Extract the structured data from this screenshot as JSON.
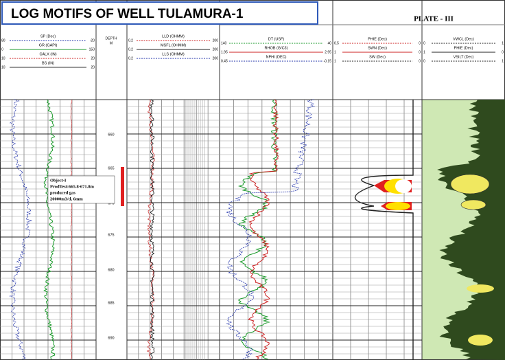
{
  "header": {
    "title": "LOG MOTIFS OF WELL TULAMURA-1",
    "plate": "PLATE - III"
  },
  "tracks": [
    {
      "curves": [
        {
          "name": "SP (Dec)",
          "left": "80",
          "right": "-20",
          "color": "#2233aa"
        },
        {
          "name": "GR (GAPI)",
          "left": "0",
          "right": "150",
          "color": "#1a9a2a"
        },
        {
          "name": "CALX (IN)",
          "left": "10",
          "right": "20",
          "color": "#cc2222"
        },
        {
          "name": "BS (IN)",
          "left": "10",
          "right": "20",
          "color": "#333333"
        }
      ]
    },
    {
      "curves": [
        {
          "name": "LLD (OHMM)",
          "left": "0.2",
          "right": "200",
          "color": "#cc2222"
        },
        {
          "name": "MSFL (OHMM)",
          "left": "0.2",
          "right": "200",
          "color": "#222222"
        },
        {
          "name": "LLS (OHMM)",
          "left": "0.2",
          "right": "200",
          "color": "#2233aa"
        }
      ]
    },
    {
      "curves": [
        {
          "name": "DT (USF)",
          "left": "140",
          "right": "40",
          "color": "#1a9a2a"
        },
        {
          "name": "RHOB (G/C3)",
          "left": "1.95",
          "right": "2.95",
          "color": "#cc2222"
        },
        {
          "name": "NPHI (DEC)",
          "left": "0.45",
          "right": "-0.15",
          "color": "#2233aa"
        }
      ]
    },
    {
      "curves": [
        {
          "name": "PHIE (Dec)",
          "left": "0.5",
          "right": "0",
          "color": "#cc2222"
        },
        {
          "name": "SWN (Dec)",
          "left": "1",
          "right": "0",
          "color": "#cc2222"
        },
        {
          "name": "SW (Dec)",
          "left": "1",
          "right": "0",
          "color": "#222222"
        }
      ]
    },
    {
      "curves": [
        {
          "name": "VWCL (Dec)",
          "left": "0",
          "right": "1",
          "color": "#222222"
        },
        {
          "name": "PHIE (Dec)",
          "left": "1",
          "right": "0",
          "color": "#222222"
        },
        {
          "name": "VSILT (Dec)",
          "left": "0",
          "right": "1",
          "color": "#222222"
        }
      ]
    }
  ],
  "depth": {
    "title": "DEPTH",
    "unit": "M",
    "labels": [
      "660",
      "665",
      "670",
      "675",
      "680",
      "685",
      "690"
    ]
  },
  "annotation": {
    "lines": [
      "Object-I",
      "ProdTest:665.8-671.8m",
      "produced gas",
      "20000m3/d, 6mm"
    ]
  }
}
